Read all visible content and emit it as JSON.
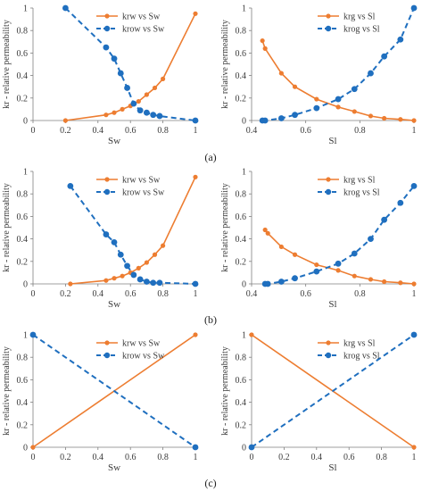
{
  "colors": {
    "orange": "#ED7D31",
    "blue": "#1F6FBF",
    "axis": "#7f7f7f",
    "text": "#3a3a3a"
  },
  "panel_labels": [
    "(a)",
    "(b)",
    "(c)"
  ],
  "chart_data": [
    {
      "type": "line",
      "panel": "(a)",
      "xlabel": "Sw",
      "ylabel": "kr - relative permeability",
      "xlim": [
        0,
        1
      ],
      "ylim": [
        0,
        1
      ],
      "xticks": [
        "0",
        "0.2",
        "0.4",
        "0.6",
        "0.8",
        "1"
      ],
      "yticks": [
        "0",
        "0.2",
        "0.4",
        "0.6",
        "0.8",
        "1"
      ],
      "legend": "top-center",
      "series": [
        {
          "name": "krw vs Sw",
          "color": "orange",
          "dashed": false,
          "x": [
            0.2,
            0.45,
            0.5,
            0.55,
            0.6,
            0.65,
            0.7,
            0.75,
            0.8,
            1.0
          ],
          "y": [
            0.0,
            0.05,
            0.07,
            0.1,
            0.13,
            0.17,
            0.23,
            0.29,
            0.37,
            0.95
          ]
        },
        {
          "name": "krow vs Sw",
          "color": "blue",
          "dashed": true,
          "x": [
            0.2,
            0.45,
            0.5,
            0.54,
            0.58,
            0.62,
            0.66,
            0.7,
            0.74,
            0.78,
            1.0
          ],
          "y": [
            1.0,
            0.65,
            0.55,
            0.42,
            0.29,
            0.15,
            0.09,
            0.07,
            0.05,
            0.04,
            0.0
          ]
        }
      ]
    },
    {
      "type": "line",
      "panel": "(a)",
      "xlabel": "Sl",
      "ylabel": "kr - relative permeability",
      "xlim": [
        0.4,
        1
      ],
      "ylim": [
        0,
        1
      ],
      "xticks": [
        "0.4",
        "0.6",
        "0.8",
        "1"
      ],
      "yticks": [
        "0",
        "0.2",
        "0.4",
        "0.6",
        "0.8",
        "1"
      ],
      "legend": "top-right",
      "series": [
        {
          "name": "krg vs Sl",
          "color": "orange",
          "dashed": false,
          "x": [
            0.44,
            0.45,
            0.51,
            0.56,
            0.64,
            0.72,
            0.78,
            0.84,
            0.89,
            0.95,
            1.0
          ],
          "y": [
            0.71,
            0.64,
            0.42,
            0.3,
            0.19,
            0.12,
            0.08,
            0.04,
            0.02,
            0.01,
            0.0
          ]
        },
        {
          "name": "krog vs Sl",
          "color": "blue",
          "dashed": true,
          "x": [
            0.44,
            0.45,
            0.51,
            0.56,
            0.64,
            0.72,
            0.78,
            0.84,
            0.89,
            0.95,
            1.0
          ],
          "y": [
            0.0,
            0.0,
            0.02,
            0.05,
            0.11,
            0.19,
            0.28,
            0.42,
            0.57,
            0.72,
            1.0
          ]
        }
      ]
    },
    {
      "type": "line",
      "panel": "(b)",
      "xlabel": "Sw",
      "ylabel": "kr - relative permeability",
      "xlim": [
        0,
        1
      ],
      "ylim": [
        0,
        1
      ],
      "xticks": [
        "0",
        "0.2",
        "0.4",
        "0.6",
        "0.8",
        "1"
      ],
      "yticks": [
        "0",
        "0.2",
        "0.4",
        "0.6",
        "0.8",
        "1"
      ],
      "legend": "top-center",
      "series": [
        {
          "name": "krw vs Sw",
          "color": "orange",
          "dashed": false,
          "x": [
            0.23,
            0.45,
            0.5,
            0.55,
            0.6,
            0.65,
            0.7,
            0.75,
            0.8,
            1.0
          ],
          "y": [
            0.0,
            0.03,
            0.05,
            0.07,
            0.1,
            0.14,
            0.19,
            0.26,
            0.34,
            0.95
          ]
        },
        {
          "name": "krow vs Sw",
          "color": "blue",
          "dashed": true,
          "x": [
            0.23,
            0.45,
            0.5,
            0.54,
            0.58,
            0.62,
            0.66,
            0.7,
            0.74,
            0.78,
            1.0
          ],
          "y": [
            0.87,
            0.44,
            0.37,
            0.26,
            0.16,
            0.08,
            0.04,
            0.02,
            0.01,
            0.01,
            0.0
          ]
        }
      ]
    },
    {
      "type": "line",
      "panel": "(b)",
      "xlabel": "Sl",
      "ylabel": "kr - relative permeability",
      "xlim": [
        0.4,
        1
      ],
      "ylim": [
        0,
        1
      ],
      "xticks": [
        "0.4",
        "0.6",
        "0.8",
        "1"
      ],
      "yticks": [
        "0",
        "0.2",
        "0.4",
        "0.6",
        "0.8",
        "1"
      ],
      "legend": "top-right",
      "series": [
        {
          "name": "krg vs Sl",
          "color": "orange",
          "dashed": false,
          "x": [
            0.45,
            0.46,
            0.51,
            0.56,
            0.64,
            0.72,
            0.78,
            0.84,
            0.89,
            0.95,
            1.0
          ],
          "y": [
            0.48,
            0.45,
            0.33,
            0.26,
            0.17,
            0.12,
            0.07,
            0.04,
            0.02,
            0.01,
            0.0
          ]
        },
        {
          "name": "krog vs Sl",
          "color": "blue",
          "dashed": true,
          "x": [
            0.45,
            0.46,
            0.51,
            0.56,
            0.64,
            0.72,
            0.78,
            0.84,
            0.89,
            0.95,
            1.0
          ],
          "y": [
            0.0,
            0.0,
            0.02,
            0.05,
            0.11,
            0.18,
            0.27,
            0.4,
            0.57,
            0.72,
            0.87
          ]
        }
      ]
    },
    {
      "type": "line",
      "panel": "(c)",
      "xlabel": "Sw",
      "ylabel": "kr - relative permeability",
      "xlim": [
        0,
        1
      ],
      "ylim": [
        0,
        1
      ],
      "xticks": [
        "0",
        "0.2",
        "0.4",
        "0.6",
        "0.8",
        "1"
      ],
      "yticks": [
        "0",
        "0.2",
        "0.4",
        "0.6",
        "0.8",
        "1"
      ],
      "legend": "top-center",
      "series": [
        {
          "name": "krw vs Sw",
          "color": "orange",
          "dashed": false,
          "x": [
            0,
            1
          ],
          "y": [
            0,
            1
          ]
        },
        {
          "name": "krow vs Sw",
          "color": "blue",
          "dashed": true,
          "x": [
            0,
            1
          ],
          "y": [
            1,
            0
          ]
        }
      ]
    },
    {
      "type": "line",
      "panel": "(c)",
      "xlabel": "Sl",
      "ylabel": "kr - relative permeability",
      "xlim": [
        0,
        1
      ],
      "ylim": [
        0,
        1
      ],
      "xticks": [
        "0",
        "0.2",
        "0.4",
        "0.6",
        "0.8",
        "1"
      ],
      "yticks": [
        "0",
        "0.2",
        "0.4",
        "0.6",
        "0.8",
        "1"
      ],
      "legend": "top-right",
      "series": [
        {
          "name": "krg vs Sl",
          "color": "orange",
          "dashed": false,
          "x": [
            0,
            1
          ],
          "y": [
            1,
            0
          ]
        },
        {
          "name": "krog vs Sl",
          "color": "blue",
          "dashed": true,
          "x": [
            0,
            1
          ],
          "y": [
            0,
            1
          ]
        }
      ]
    }
  ]
}
